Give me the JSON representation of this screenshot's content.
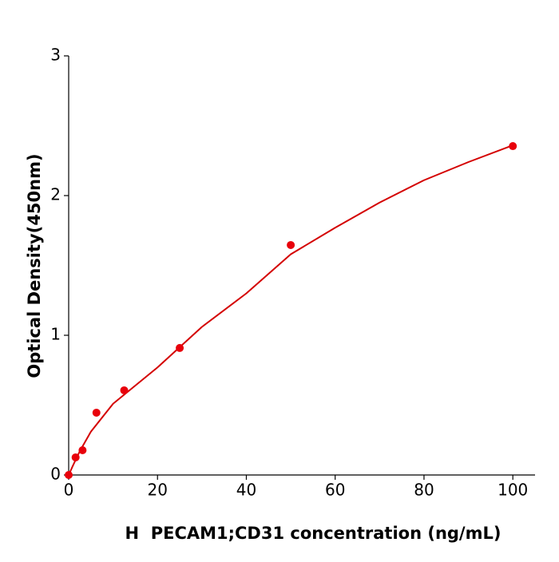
{
  "chart_data": {
    "type": "scatter",
    "x_label": "H  PECAM1;CD31 concentration (ng/mL)",
    "y_label": "Optical Density(450nm)",
    "x": [
      0,
      1.56,
      3.125,
      6.25,
      12.5,
      25,
      50,
      100
    ],
    "values": [
      0.0,
      0.126,
      0.177,
      0.446,
      0.606,
      0.909,
      1.646,
      2.354
    ],
    "color": "#e8000b",
    "curve": {
      "color": "#d40000",
      "x": [
        0,
        1,
        2.5,
        5,
        10,
        20,
        30,
        40,
        50,
        60,
        70,
        80,
        90,
        100
      ],
      "values": [
        0,
        0.07,
        0.17,
        0.31,
        0.51,
        0.77,
        1.06,
        1.3,
        1.58,
        1.77,
        1.95,
        2.11,
        2.24,
        2.36
      ]
    },
    "xlim": [
      0,
      105
    ],
    "xticks": [
      0,
      20,
      40,
      60,
      80,
      100
    ],
    "ylim": [
      0,
      3
    ],
    "yticks": [
      0,
      1,
      2,
      3
    ],
    "grid": false
  }
}
